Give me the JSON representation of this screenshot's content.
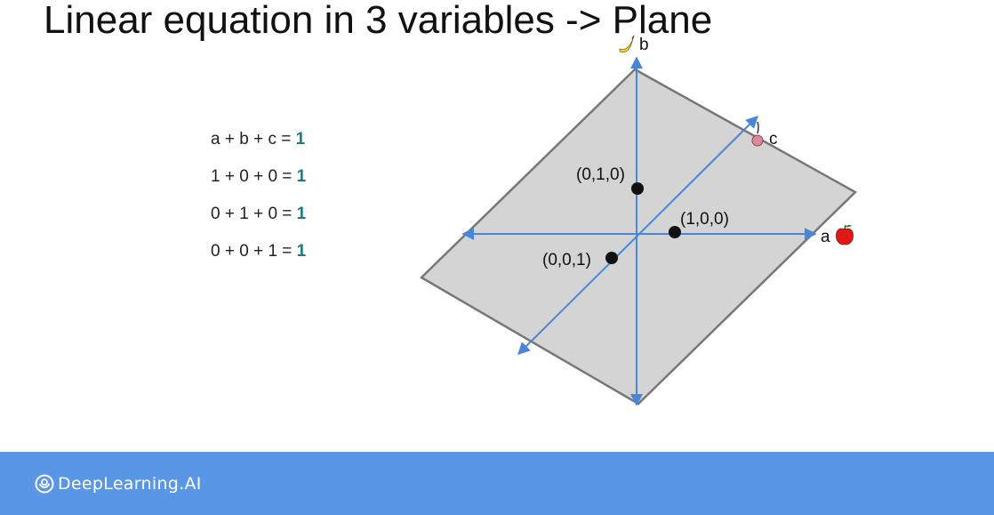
{
  "slide": {
    "title": "Linear equation in 3 variables -> Plane"
  },
  "equations": [
    {
      "lhs": "a + b + c = ",
      "rhs": "1"
    },
    {
      "lhs": "1 + 0 + 0 = ",
      "rhs": "1"
    },
    {
      "lhs": "0 + 1 + 0 = ",
      "rhs": "1"
    },
    {
      "lhs": "0 + 0 + 1 = ",
      "rhs": "1"
    }
  ],
  "diagram": {
    "axes": {
      "a": {
        "label": "a",
        "icon": "apple-icon"
      },
      "b": {
        "label": "b",
        "icon": "banana-icon"
      },
      "c": {
        "label": "c",
        "icon": "cherry-icon"
      }
    },
    "points": [
      {
        "label": "(0,1,0)"
      },
      {
        "label": "(1,0,0)"
      },
      {
        "label": "(0,0,1)"
      }
    ],
    "colors": {
      "plane_fill": "#d4d4d4",
      "plane_edge": "#777777",
      "axis": "#4a86d8",
      "point": "#111111",
      "rhs_highlight": "#1f7a82"
    }
  },
  "footer": {
    "brand": "DeepLearning.AI",
    "background": "#5a96e6"
  }
}
